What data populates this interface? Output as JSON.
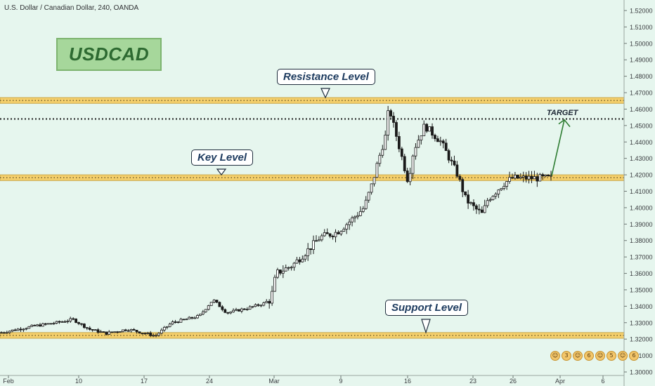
{
  "header": {
    "symbol_line": "U.S. Dollar / Canadian Dollar, 240, OANDA"
  },
  "logo_text": "USDCAD",
  "annotations": {
    "resistance": "Resistance Level",
    "key": "Key Level",
    "support": "Support Level",
    "target": "TARGET"
  },
  "emoji_counts": [
    "3",
    "6",
    "5",
    "6"
  ],
  "colors": {
    "background": "#e6f6ee",
    "band_fill": "#f4cf6c",
    "band_border": "#c9a84a",
    "candle_up": "#1a1a1a",
    "candle_down": "#1a1a1a",
    "arrow": "#2e7d32"
  },
  "chart_data": {
    "type": "candlestick",
    "title": "U.S. Dollar / Canadian Dollar, 240, OANDA",
    "ylim": [
      1.3,
      1.525
    ],
    "y_ticks": [
      "1.52000",
      "1.51000",
      "1.50000",
      "1.49000",
      "1.48000",
      "1.47000",
      "1.46000",
      "1.45000",
      "1.44000",
      "1.43000",
      "1.42000",
      "1.41000",
      "1.40000",
      "1.39000",
      "1.38000",
      "1.37000",
      "1.36000",
      "1.35000",
      "1.34000",
      "1.33000",
      "1.32000",
      "1.31000",
      "1.30000"
    ],
    "x_ticks": [
      "Feb",
      "10",
      "17",
      "24",
      "Mar",
      "9",
      "16",
      "23",
      "26",
      "Apr",
      "6"
    ],
    "levels": [
      {
        "name": "Resistance Level",
        "low": 1.4635,
        "high": 1.467
      },
      {
        "name": "Key Level",
        "low": 1.4165,
        "high": 1.42
      },
      {
        "name": "Support Level",
        "low": 1.3205,
        "high": 1.324
      }
    ],
    "target": 1.454,
    "path": [
      [
        0,
        1.324
      ],
      [
        0.06,
        1.328
      ],
      [
        0.1,
        1.33
      ],
      [
        0.13,
        1.332
      ],
      [
        0.16,
        1.326
      ],
      [
        0.19,
        1.3235
      ],
      [
        0.23,
        1.326
      ],
      [
        0.28,
        1.322
      ],
      [
        0.31,
        1.33
      ],
      [
        0.36,
        1.334
      ],
      [
        0.385,
        1.344
      ],
      [
        0.41,
        1.336
      ],
      [
        0.45,
        1.339
      ],
      [
        0.48,
        1.342
      ],
      [
        0.49,
        1.344
      ],
      [
        0.5,
        1.36
      ],
      [
        0.53,
        1.365
      ],
      [
        0.56,
        1.375
      ],
      [
        0.58,
        1.382
      ],
      [
        0.61,
        1.385
      ],
      [
        0.635,
        1.392
      ],
      [
        0.66,
        1.4
      ],
      [
        0.675,
        1.415
      ],
      [
        0.685,
        1.428
      ],
      [
        0.7,
        1.445
      ],
      [
        0.705,
        1.462
      ],
      [
        0.712,
        1.452
      ],
      [
        0.72,
        1.442
      ],
      [
        0.74,
        1.416
      ],
      [
        0.75,
        1.435
      ],
      [
        0.77,
        1.45
      ],
      [
        0.785,
        1.445
      ],
      [
        0.8,
        1.44
      ],
      [
        0.815,
        1.43
      ],
      [
        0.83,
        1.42
      ],
      [
        0.845,
        1.405
      ],
      [
        0.86,
        1.4
      ],
      [
        0.875,
        1.396
      ],
      [
        0.885,
        1.405
      ],
      [
        0.9,
        1.41
      ],
      [
        0.915,
        1.415
      ],
      [
        0.93,
        1.418
      ]
    ]
  }
}
